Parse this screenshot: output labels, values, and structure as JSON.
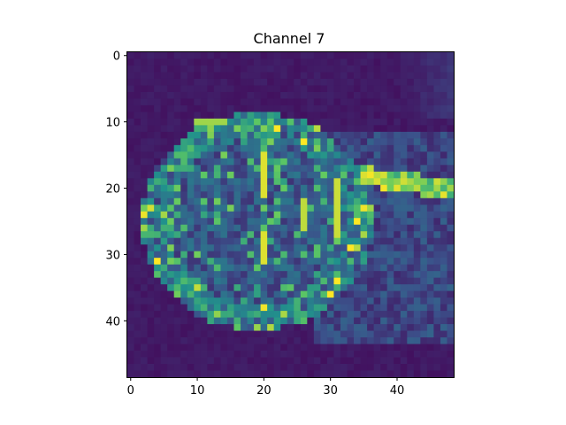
{
  "figure": {
    "title": "Channel 7",
    "colormap": "viridis"
  },
  "image": {
    "rows": 49,
    "cols": 49,
    "description_values": "0-1 normalized activation intensity"
  },
  "axes": {
    "x_ticks": [
      0,
      10,
      20,
      30,
      40
    ],
    "y_ticks": [
      0,
      10,
      20,
      30,
      40
    ],
    "x_range": [
      -0.5,
      48.5
    ],
    "y_range": [
      -0.5,
      48.5
    ]
  },
  "colors": {
    "low": "#440154",
    "mid": "#31688e",
    "midhigh": "#35b779",
    "high": "#fde725"
  }
}
